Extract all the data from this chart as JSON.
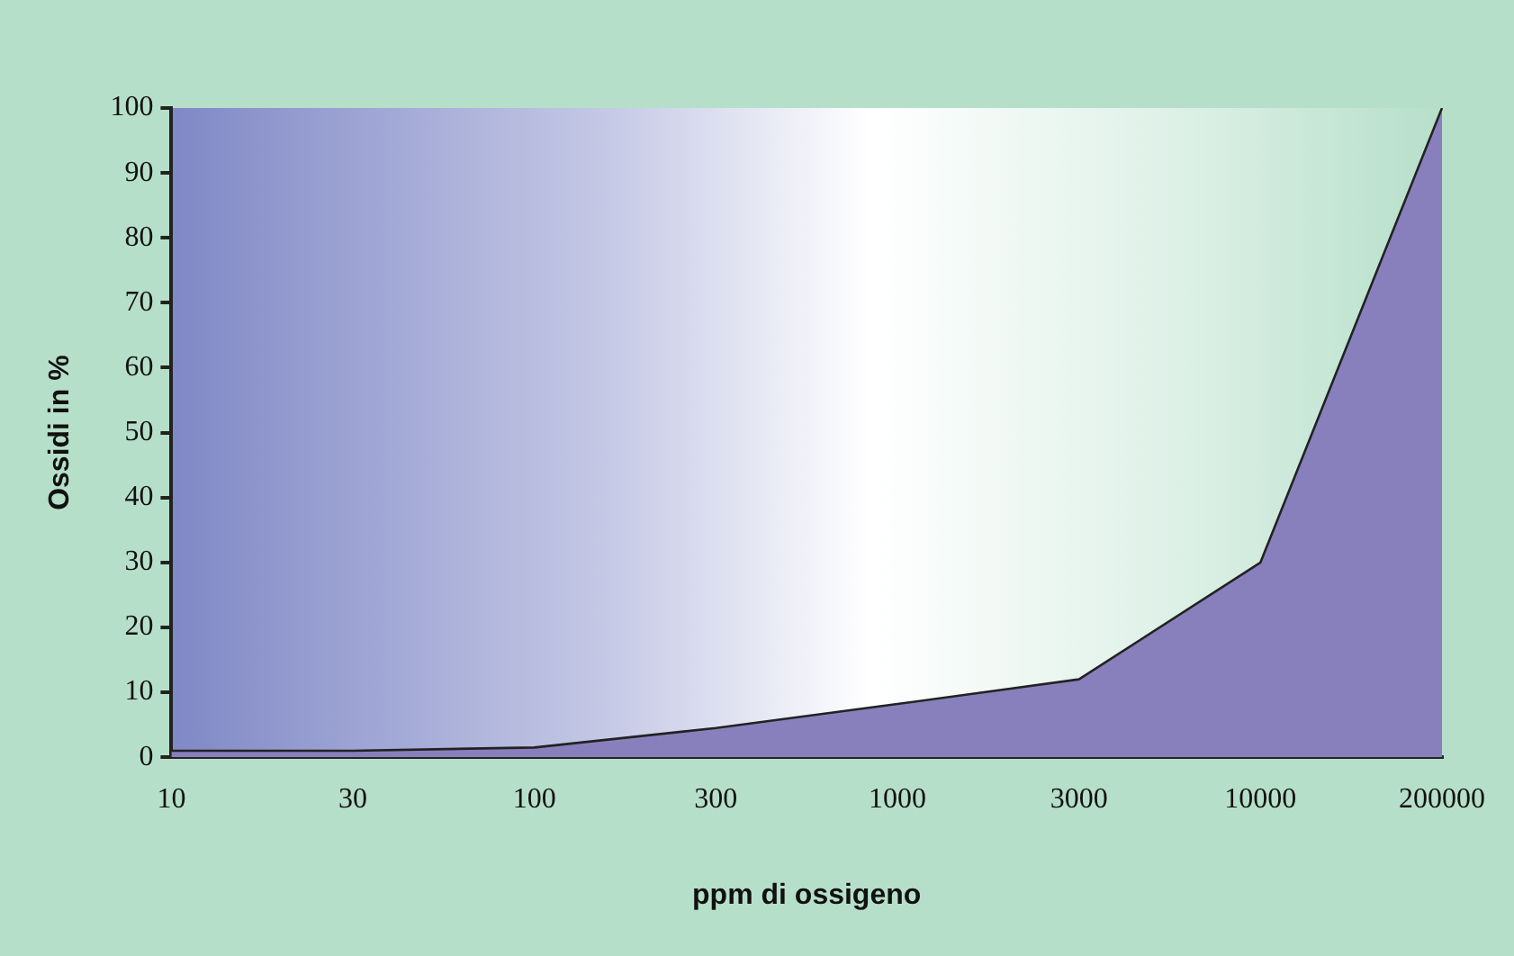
{
  "chart_data": {
    "type": "area",
    "xlabel": "ppm di ossigeno",
    "ylabel": "Ossidi in %",
    "categories": [
      "10",
      "30",
      "100",
      "300",
      "1000",
      "3000",
      "10000",
      "200000"
    ],
    "series": [
      {
        "color": "#8880bd",
        "values": [
          1,
          1,
          1.5,
          4.5,
          8.2,
          12,
          30,
          100
        ]
      }
    ],
    "ylim": [
      0,
      100
    ],
    "yticks": [
      0,
      10,
      20,
      30,
      40,
      50,
      60,
      70,
      80,
      90,
      100
    ],
    "grid": false,
    "legend": false
  }
}
